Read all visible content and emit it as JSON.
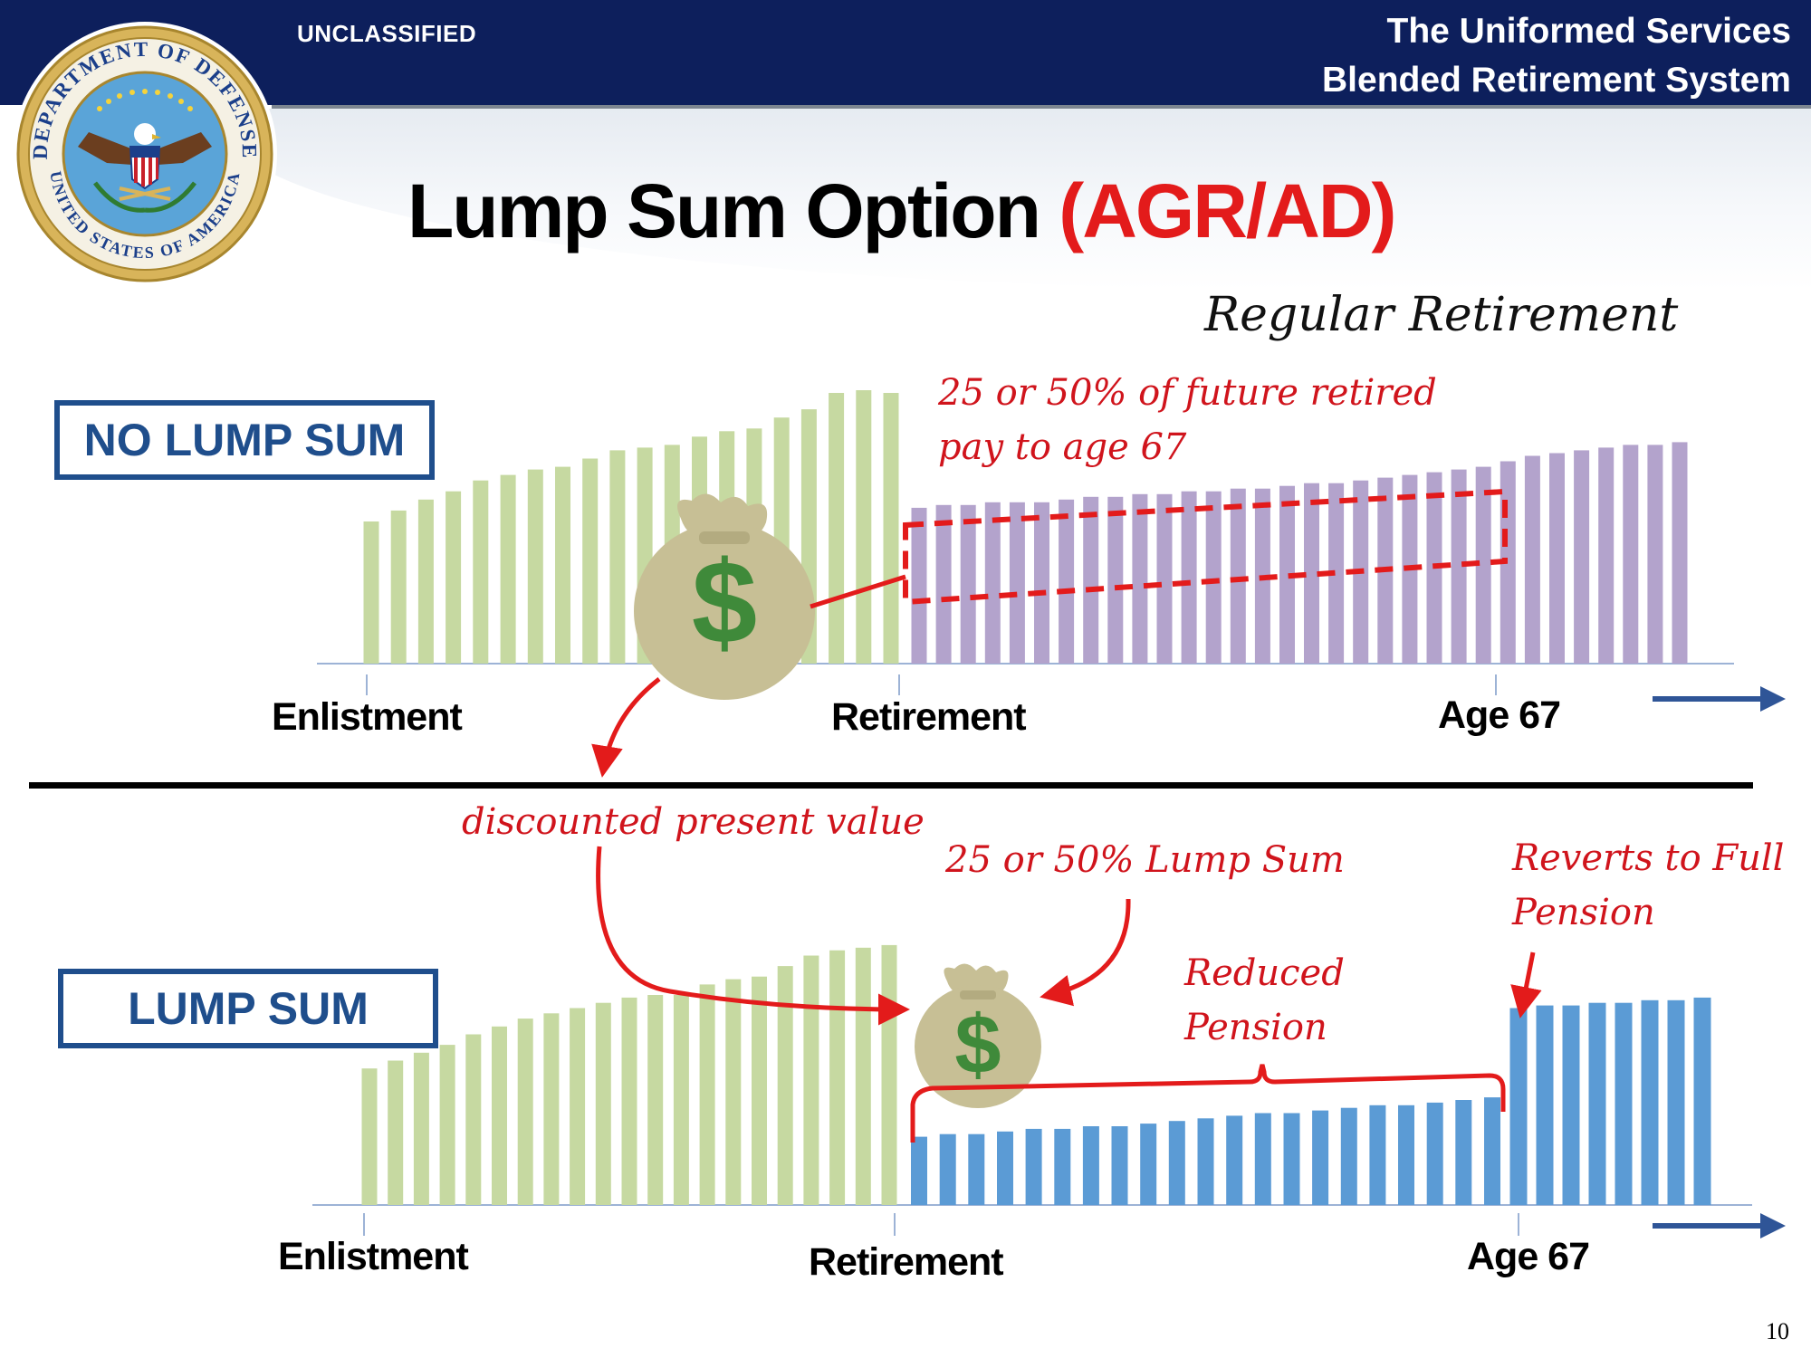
{
  "header": {
    "classification": "UNCLASSIFIED",
    "system_line1": "The Uniformed Services",
    "system_line2": "Blended Retirement System",
    "seal_text_top": "DEPARTMENT OF DEFENSE",
    "seal_text_bottom": "UNITED STATES OF AMERICA"
  },
  "slide": {
    "title_main": "Lump Sum Option",
    "title_accent": "(AGR/AD)",
    "subtitle": "Regular Retirement",
    "page_number": "10"
  },
  "colors": {
    "navy": "#0d1f5c",
    "accent_red": "#e31b1b",
    "green_bars": "#c6d9a1",
    "purple_bars": "#b3a3cc",
    "blue_bars": "#5b9bd5",
    "box_border": "#1f4e8c",
    "money_bag": "#c7bf95",
    "dollar_sign": "#3f8a3a"
  },
  "top_panel": {
    "label": "NO LUMP SUM",
    "annotation_line1": "25 or 50% of future retired",
    "annotation_line2": "pay to age 67",
    "axis": {
      "enlistment": "Enlistment",
      "retirement": "Retirement",
      "age67": "Age 67"
    },
    "icons": [
      "money-bag-icon",
      "dollar-sign-icon",
      "arrow-right-icon"
    ]
  },
  "bottom_panel": {
    "label": "LUMP SUM",
    "annotation_dpv": "discounted present value",
    "annotation_lump": "25 or 50% Lump Sum",
    "annotation_reduced_line1": "Reduced",
    "annotation_reduced_line2": "Pension",
    "annotation_reverts_line1": "Reverts to Full",
    "annotation_reverts_line2": "Pension",
    "axis": {
      "enlistment": "Enlistment",
      "retirement": "Retirement",
      "age67": "Age 67"
    },
    "icons": [
      "money-bag-icon",
      "dollar-sign-icon",
      "arrow-right-icon"
    ]
  },
  "chart_data": [
    {
      "type": "bar",
      "series": [
        {
          "values": [
            0.52,
            0.56,
            0.6,
            0.63,
            0.67,
            0.69,
            0.71,
            0.72,
            0.75,
            0.78,
            0.79,
            0.8,
            0.83,
            0.85,
            0.86,
            0.9,
            0.93,
            0.99,
            1.0,
            0.99
          ]
        },
        {
          "values": [
            0.57,
            0.58,
            0.58,
            0.59,
            0.59,
            0.59,
            0.6,
            0.61,
            0.61,
            0.62,
            0.62,
            0.63,
            0.63,
            0.64,
            0.64,
            0.65,
            0.66,
            0.66,
            0.67,
            0.68,
            0.69,
            0.7,
            0.71,
            0.72,
            0.74,
            0.76,
            0.77,
            0.78,
            0.79,
            0.8,
            0.8,
            0.81
          ]
        }
      ]
    },
    {
      "type": "bar",
      "series": [
        {
          "values": [
            0.52,
            0.55,
            0.58,
            0.61,
            0.65,
            0.68,
            0.71,
            0.73,
            0.75,
            0.77,
            0.79,
            0.8,
            0.8,
            0.84,
            0.86,
            0.87,
            0.91,
            0.95,
            0.97,
            0.98,
            0.99
          ]
        },
        {
          "values": [
            0.26,
            0.27,
            0.27,
            0.28,
            0.29,
            0.29,
            0.3,
            0.3,
            0.31,
            0.32,
            0.33,
            0.34,
            0.35,
            0.35,
            0.36,
            0.37,
            0.38,
            0.38,
            0.39,
            0.4,
            0.41
          ]
        },
        {
          "values": [
            0.75,
            0.76,
            0.76,
            0.77,
            0.77,
            0.78,
            0.78,
            0.79
          ]
        }
      ]
    }
  ]
}
